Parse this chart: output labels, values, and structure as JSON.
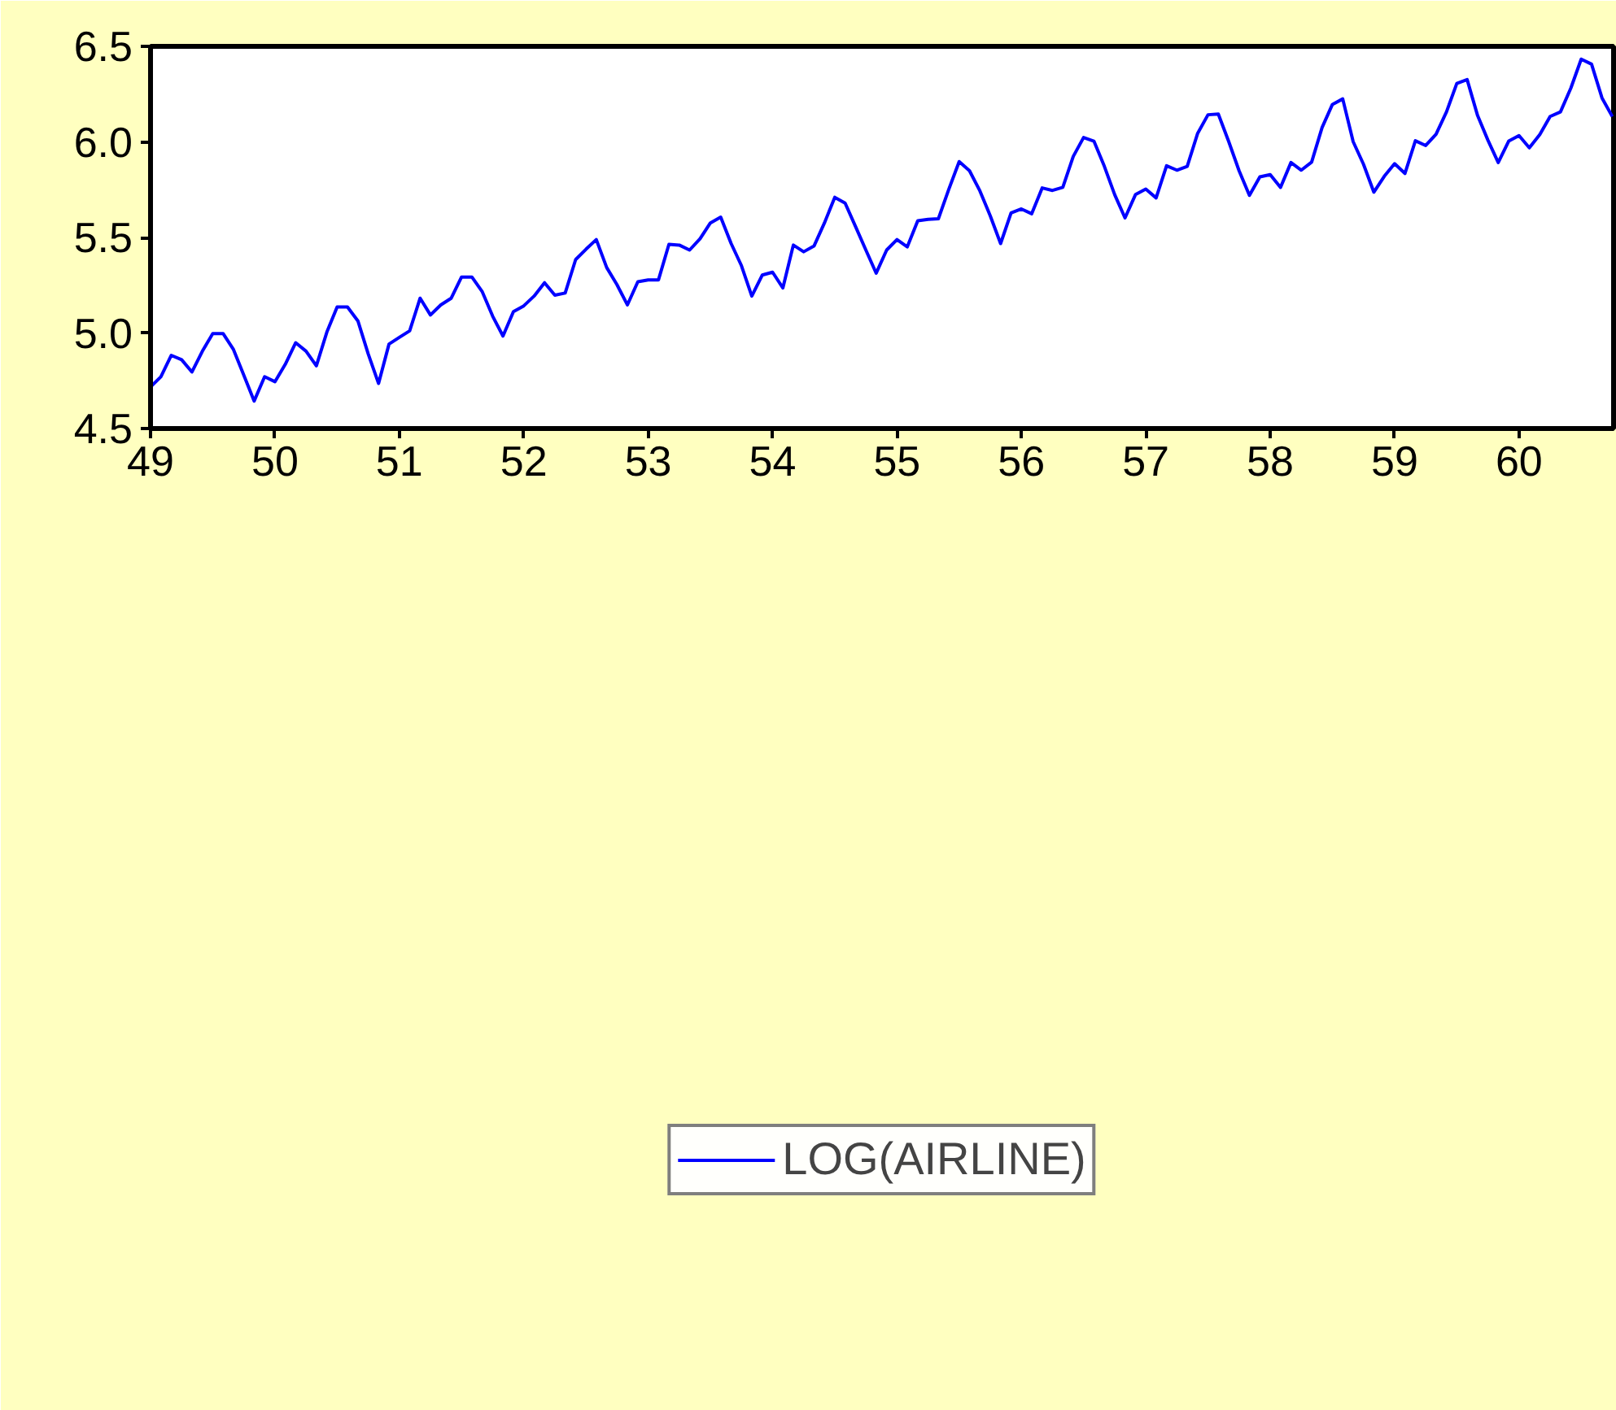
{
  "chart_data": {
    "type": "line",
    "x": [
      49.0,
      49.083,
      49.167,
      49.25,
      49.333,
      49.417,
      49.5,
      49.583,
      49.667,
      49.75,
      49.833,
      49.917,
      50.0,
      50.083,
      50.167,
      50.25,
      50.333,
      50.417,
      50.5,
      50.583,
      50.667,
      50.75,
      50.833,
      50.917,
      51.0,
      51.083,
      51.167,
      51.25,
      51.333,
      51.417,
      51.5,
      51.583,
      51.667,
      51.75,
      51.833,
      51.917,
      52.0,
      52.083,
      52.167,
      52.25,
      52.333,
      52.417,
      52.5,
      52.583,
      52.667,
      52.75,
      52.833,
      52.917,
      53.0,
      53.083,
      53.167,
      53.25,
      53.333,
      53.417,
      53.5,
      53.583,
      53.667,
      53.75,
      53.833,
      53.917,
      54.0,
      54.083,
      54.167,
      54.25,
      54.333,
      54.417,
      54.5,
      54.583,
      54.667,
      54.75,
      54.833,
      54.917,
      55.0,
      55.083,
      55.167,
      55.25,
      55.333,
      55.417,
      55.5,
      55.583,
      55.667,
      55.75,
      55.833,
      55.917,
      56.0,
      56.083,
      56.167,
      56.25,
      56.333,
      56.417,
      56.5,
      56.583,
      56.667,
      56.75,
      56.833,
      56.917,
      57.0,
      57.083,
      57.167,
      57.25,
      57.333,
      57.417,
      57.5,
      57.583,
      57.667,
      57.75,
      57.833,
      57.917,
      58.0,
      58.083,
      58.167,
      58.25,
      58.333,
      58.417,
      58.5,
      58.583,
      58.667,
      58.75,
      58.833,
      58.917,
      59.0,
      59.083,
      59.167,
      59.25,
      59.333,
      59.417,
      59.5,
      59.583,
      59.667,
      59.75,
      59.833,
      59.917,
      60.0,
      60.083,
      60.167,
      60.25,
      60.333,
      60.417,
      60.5,
      60.583,
      60.667,
      60.75
    ],
    "series": [
      {
        "name": "LOG(AIRLINE)",
        "color": "#0000ff",
        "values": [
          4.718,
          4.771,
          4.883,
          4.86,
          4.796,
          4.905,
          4.997,
          4.997,
          4.913,
          4.779,
          4.644,
          4.771,
          4.745,
          4.836,
          4.949,
          4.905,
          4.828,
          5.004,
          5.136,
          5.136,
          5.063,
          4.89,
          4.736,
          4.942,
          4.977,
          5.011,
          5.182,
          5.094,
          5.147,
          5.182,
          5.293,
          5.293,
          5.215,
          5.088,
          4.984,
          5.112,
          5.142,
          5.193,
          5.263,
          5.198,
          5.209,
          5.384,
          5.438,
          5.489,
          5.342,
          5.252,
          5.147,
          5.268,
          5.278,
          5.278,
          5.464,
          5.46,
          5.434,
          5.493,
          5.576,
          5.606,
          5.468,
          5.352,
          5.193,
          5.303,
          5.318,
          5.236,
          5.46,
          5.425,
          5.455,
          5.576,
          5.71,
          5.68,
          5.557,
          5.434,
          5.313,
          5.434,
          5.489,
          5.451,
          5.587,
          5.595,
          5.598,
          5.753,
          5.897,
          5.849,
          5.743,
          5.613,
          5.468,
          5.628,
          5.649,
          5.624,
          5.759,
          5.746,
          5.762,
          5.924,
          6.023,
          6.004,
          5.872,
          5.724,
          5.602,
          5.724,
          5.753,
          5.707,
          5.875,
          5.852,
          5.872,
          6.045,
          6.142,
          6.146,
          6.001,
          5.849,
          5.72,
          5.817,
          5.829,
          5.762,
          5.892,
          5.852,
          5.894,
          6.075,
          6.196,
          6.225,
          6.001,
          5.883,
          5.737,
          5.82,
          5.886,
          5.835,
          6.006,
          5.981,
          6.04,
          6.157,
          6.306,
          6.326,
          6.138,
          6.009,
          5.892,
          6.004,
          6.033,
          5.969,
          6.038,
          6.133,
          6.157,
          6.282,
          6.433,
          6.407,
          6.23,
          6.133
        ]
      }
    ],
    "xlim": [
      49,
      60.76
    ],
    "xticks": [
      49,
      50,
      51,
      52,
      53,
      54,
      55,
      56,
      57,
      58,
      59,
      60
    ],
    "ylim": [
      4.5,
      6.5
    ],
    "yticks": [
      4.5,
      {
        "value": 5.0,
        "label": "5.0"
      },
      5.5,
      {
        "value": 6.0,
        "label": "6.0"
      },
      6.5
    ],
    "grid": false,
    "legend": "bottom",
    "line_style": "solid",
    "marker": "none"
  }
}
